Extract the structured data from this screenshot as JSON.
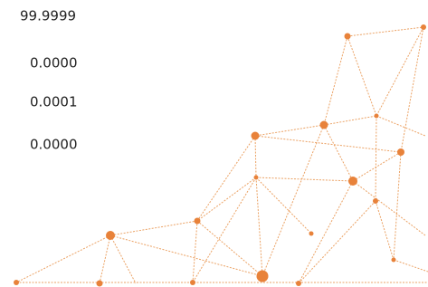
{
  "values": [
    "99.9999",
    "0.0000",
    "0.0001",
    "0.0000"
  ]
}
